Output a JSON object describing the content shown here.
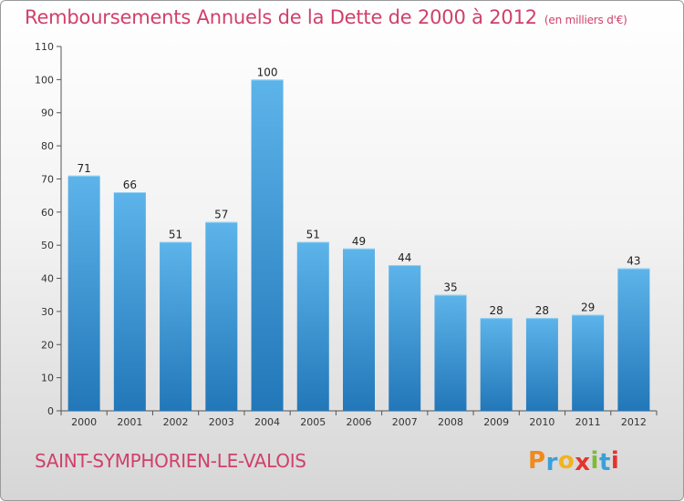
{
  "title": "Remboursements Annuels de la Dette de 2000 à 2012",
  "subtitle": "(en milliers d'€)",
  "city": "SAINT-SYMPHORIEN-LE-VALOIS",
  "logo": {
    "letters": [
      "P",
      "r",
      "o",
      "x",
      "i",
      "t",
      "i"
    ],
    "colors": [
      "#f08a1c",
      "#3aa0d8",
      "#f2b31e",
      "#e8322e",
      "#7dbb3a",
      "#3aa0d8",
      "#e8322e"
    ]
  },
  "colors": {
    "bar_light": "#5db4ea",
    "bar_dark": "#2277b8",
    "title": "#d0406a"
  },
  "chart_data": {
    "type": "bar",
    "categories": [
      "2000",
      "2001",
      "2002",
      "2003",
      "2004",
      "2005",
      "2006",
      "2007",
      "2008",
      "2009",
      "2010",
      "2011",
      "2012"
    ],
    "values": [
      71,
      66,
      51,
      57,
      100,
      51,
      49,
      44,
      35,
      28,
      28,
      29,
      43
    ],
    "ylim": [
      0,
      110
    ],
    "yticks": [
      0,
      10,
      20,
      30,
      40,
      50,
      60,
      70,
      80,
      90,
      100,
      110
    ],
    "grid": false,
    "legend": "none"
  }
}
